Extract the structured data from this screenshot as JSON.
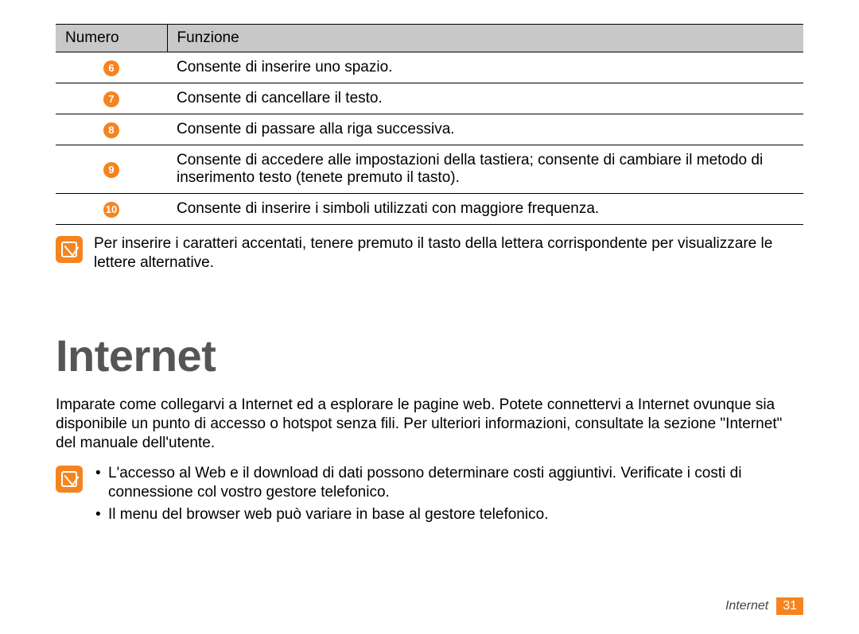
{
  "table": {
    "header": {
      "col1": "Numero",
      "col2": "Funzione"
    },
    "rows": [
      {
        "num": "6",
        "desc": "Consente di inserire uno spazio."
      },
      {
        "num": "7",
        "desc": "Consente di cancellare il testo."
      },
      {
        "num": "8",
        "desc": "Consente di passare alla riga successiva."
      },
      {
        "num": "9",
        "desc": "Consente di accedere alle impostazioni della tastiera; consente di cambiare il metodo di inserimento testo (tenete premuto il tasto)."
      },
      {
        "num": "10",
        "desc": "Consente di inserire i simboli utilizzati con maggiore frequenza."
      }
    ]
  },
  "note1": "Per inserire i caratteri accentati, tenere premuto il tasto della lettera corrispondente per visualizzare le lettere alternative.",
  "section_title": "Internet",
  "intro": "Imparate come collegarvi a Internet ed a esplorare le pagine web. Potete connettervi a Internet ovunque sia disponibile un punto di accesso o hotspot senza fili. Per ulteriori informazioni, consultate la sezione \"Internet\" del manuale dell'utente.",
  "note2": {
    "items": [
      "L'accesso al Web e il download di dati possono determinare costi aggiuntivi. Verificate i costi di connessione col vostro gestore telefonico.",
      "Il menu del browser web può variare in base al gestore telefonico."
    ]
  },
  "footer": {
    "section": "Internet",
    "page": "31"
  },
  "colors": {
    "accent": "#f5841f",
    "header_bg": "#c8c8c8",
    "title_color": "#555555",
    "page_bg": "#ffffff"
  },
  "typography": {
    "body_fontsize": 19,
    "title_fontsize": 56,
    "footer_fontsize": 16,
    "circle_num_fontsize": 13
  }
}
